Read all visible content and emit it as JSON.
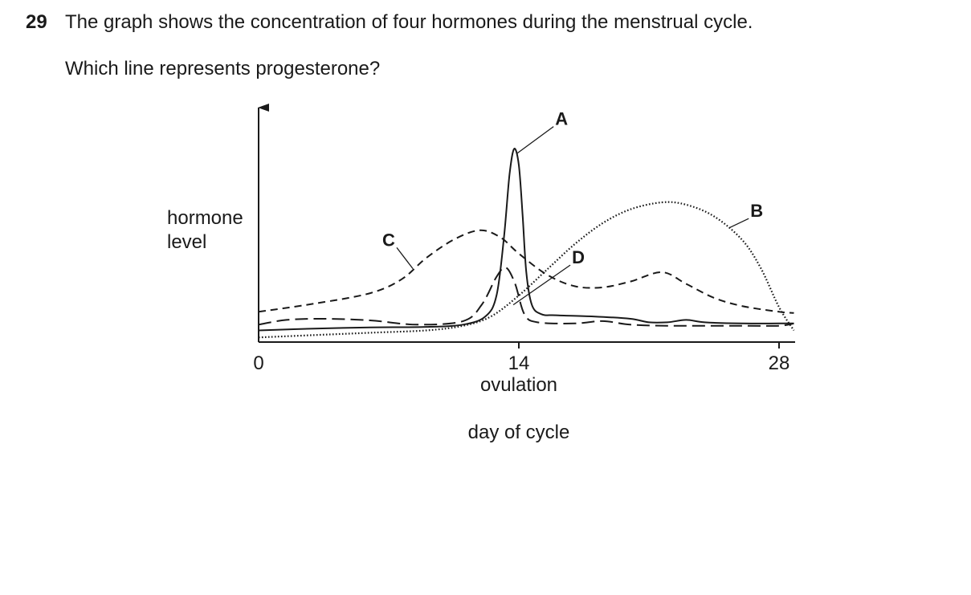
{
  "question": {
    "number": "29",
    "text": "The graph shows the concentration of four hormones during the menstrual cycle.",
    "ask": "Which line represents progesterone?"
  },
  "chart_data": {
    "type": "line",
    "title": "",
    "xlabel": "day of cycle",
    "ylabel": "hormone level",
    "ylabel_lines": [
      "hormone",
      "level"
    ],
    "xlim": [
      0,
      28.8
    ],
    "ylim": [
      0,
      1
    ],
    "x_ticks": [
      {
        "value": 0,
        "label": "0"
      },
      {
        "value": 14,
        "label": "14"
      },
      {
        "value": 28,
        "label": "28"
      }
    ],
    "x_annotation": "ovulation",
    "grid": false,
    "series": [
      {
        "name": "A",
        "style": "solid",
        "points": [
          [
            0,
            0.05
          ],
          [
            3,
            0.058
          ],
          [
            6,
            0.063
          ],
          [
            9,
            0.065
          ],
          [
            11,
            0.075
          ],
          [
            12.2,
            0.11
          ],
          [
            12.8,
            0.2
          ],
          [
            13.2,
            0.45
          ],
          [
            13.5,
            0.72
          ],
          [
            13.75,
            0.83
          ],
          [
            14,
            0.76
          ],
          [
            14.2,
            0.55
          ],
          [
            14.4,
            0.3
          ],
          [
            14.7,
            0.16
          ],
          [
            15.2,
            0.12
          ],
          [
            16,
            0.115
          ],
          [
            18,
            0.11
          ],
          [
            20,
            0.1
          ],
          [
            21,
            0.085
          ],
          [
            22,
            0.085
          ],
          [
            23,
            0.095
          ],
          [
            24,
            0.085
          ],
          [
            26,
            0.08
          ],
          [
            28,
            0.08
          ],
          [
            28.8,
            0.08
          ]
        ]
      },
      {
        "name": "B",
        "style": "dotted",
        "points": [
          [
            0,
            0.02
          ],
          [
            3,
            0.03
          ],
          [
            6,
            0.04
          ],
          [
            9,
            0.05
          ],
          [
            11,
            0.07
          ],
          [
            12.5,
            0.11
          ],
          [
            14,
            0.2
          ],
          [
            15.5,
            0.31
          ],
          [
            17,
            0.42
          ],
          [
            18.5,
            0.51
          ],
          [
            20,
            0.57
          ],
          [
            21.7,
            0.6
          ],
          [
            23,
            0.59
          ],
          [
            24.5,
            0.54
          ],
          [
            26,
            0.44
          ],
          [
            27,
            0.32
          ],
          [
            28,
            0.15
          ],
          [
            28.8,
            0.05
          ]
        ]
      },
      {
        "name": "C",
        "style": "dashed",
        "points": [
          [
            0,
            0.13
          ],
          [
            3,
            0.165
          ],
          [
            6,
            0.21
          ],
          [
            7.7,
            0.27
          ],
          [
            9,
            0.36
          ],
          [
            10.5,
            0.44
          ],
          [
            11.9,
            0.48
          ],
          [
            13,
            0.45
          ],
          [
            14,
            0.38
          ],
          [
            15.5,
            0.29
          ],
          [
            17,
            0.24
          ],
          [
            18.5,
            0.235
          ],
          [
            20,
            0.26
          ],
          [
            21.7,
            0.3
          ],
          [
            23,
            0.25
          ],
          [
            24.5,
            0.19
          ],
          [
            26,
            0.155
          ],
          [
            28,
            0.13
          ],
          [
            28.8,
            0.125
          ]
        ]
      },
      {
        "name": "D",
        "style": "long-dash",
        "points": [
          [
            0,
            0.075
          ],
          [
            1.5,
            0.095
          ],
          [
            3.5,
            0.1
          ],
          [
            6,
            0.093
          ],
          [
            8.5,
            0.075
          ],
          [
            11,
            0.09
          ],
          [
            12,
            0.16
          ],
          [
            12.8,
            0.28
          ],
          [
            13.3,
            0.32
          ],
          [
            13.8,
            0.25
          ],
          [
            14.3,
            0.12
          ],
          [
            15,
            0.085
          ],
          [
            17,
            0.08
          ],
          [
            18.5,
            0.09
          ],
          [
            20,
            0.075
          ],
          [
            22,
            0.07
          ],
          [
            26,
            0.07
          ],
          [
            28,
            0.07
          ],
          [
            28.8,
            0.08
          ]
        ]
      }
    ],
    "line_labels": [
      {
        "series": "A",
        "text": "A",
        "anchor": [
          13.9,
          0.81
        ],
        "label_pos": [
          16.3,
          0.96
        ]
      },
      {
        "series": "B",
        "text": "B",
        "anchor": [
          25.3,
          0.49
        ],
        "label_pos": [
          26.8,
          0.565
        ]
      },
      {
        "series": "C",
        "text": "C",
        "anchor": [
          8.3,
          0.315
        ],
        "label_pos": [
          7.0,
          0.44
        ]
      },
      {
        "series": "D",
        "text": "D",
        "anchor": [
          13.7,
          0.16
        ],
        "label_pos": [
          17.2,
          0.365
        ]
      }
    ]
  }
}
